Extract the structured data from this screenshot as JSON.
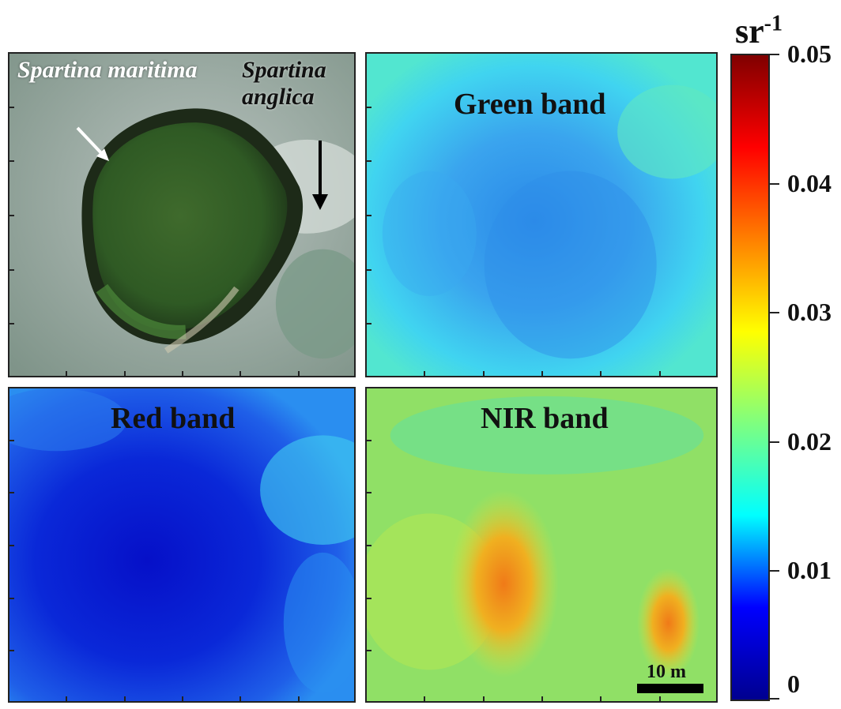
{
  "panels": {
    "photo": {
      "label_maritima": "Spartina maritima",
      "label_anglica": "Spartina anglica"
    },
    "green": {
      "title": "Green band"
    },
    "red": {
      "title": "Red band"
    },
    "nir": {
      "title": "NIR band"
    }
  },
  "colorbar": {
    "unit": "sr",
    "unit_exponent": "-1",
    "ticks": [
      "0.05",
      "0.04",
      "0.03",
      "0.02",
      "0.01",
      "0"
    ],
    "colormap": [
      "#00008f",
      "#0000ff",
      "#00ffff",
      "#7fff7f",
      "#ffff00",
      "#ff8000",
      "#ff0000",
      "#800000"
    ]
  },
  "scalebar": {
    "label": "10 m"
  },
  "colors": {
    "green_band_fill": "#3fc8f0",
    "red_band_fill": "#1840e0",
    "nir_band_fill": "#8ae060",
    "nir_hotspot": "#f0a020"
  }
}
